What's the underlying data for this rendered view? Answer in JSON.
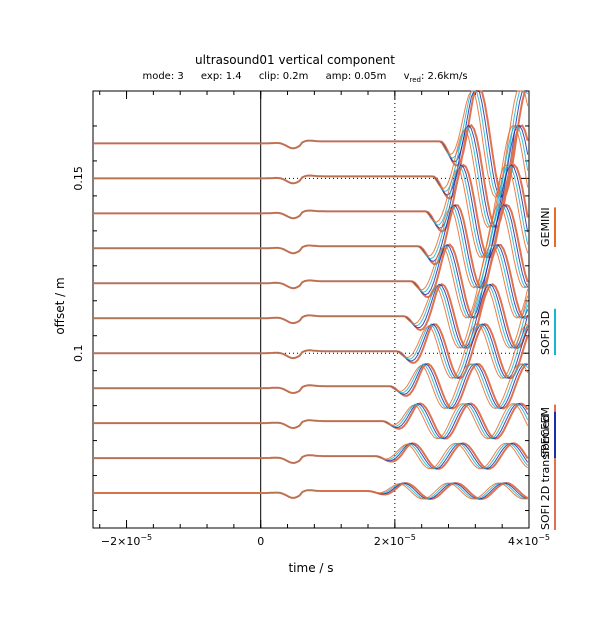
{
  "title": "ultrasound01 vertical component",
  "params": {
    "mode": "mode: 3",
    "exp": "exp: 1.4",
    "clip": "clip: 0.2m",
    "amp": "amp: 0.05m",
    "vred_prefix": "v",
    "vred_sub": "red",
    "vred_value": ": 2.6km/s"
  },
  "chart_data": {
    "type": "line",
    "title": "ultrasound01 vertical component",
    "xlabel": "time / s",
    "ylabel": "offset / m",
    "xlim": [
      -2.5e-05,
      4e-05
    ],
    "ylim": [
      0.05,
      0.175
    ],
    "x_ticks": [
      {
        "value": -2e-05,
        "label": "−2×10",
        "exp": "−5"
      },
      {
        "value": 0,
        "label": "0",
        "exp": ""
      },
      {
        "value": 2e-05,
        "label": "2×10",
        "exp": "−5"
      },
      {
        "value": 4e-05,
        "label": "4×10",
        "exp": "−5"
      }
    ],
    "y_ticks": [
      {
        "value": 0.1,
        "label": "0.1"
      },
      {
        "value": 0.15,
        "label": "0.15"
      }
    ],
    "dotted_ref": {
      "x": 2e-05,
      "y": [
        0.1,
        0.15
      ]
    },
    "trace_offsets": [
      0.16,
      0.15,
      0.14,
      0.13,
      0.12,
      0.11,
      0.1,
      0.09,
      0.08,
      0.07,
      0.06
    ],
    "series": [
      {
        "name": "SOFI 2D transformed",
        "color": "#e07250"
      },
      {
        "name": "SPECFEM",
        "color": "#1a2ea8"
      },
      {
        "name": "SOFI 3D",
        "color": "#19b6d4"
      },
      {
        "name": "GEMINI",
        "color": "#e86a2a"
      }
    ],
    "legend_placement": "right"
  }
}
